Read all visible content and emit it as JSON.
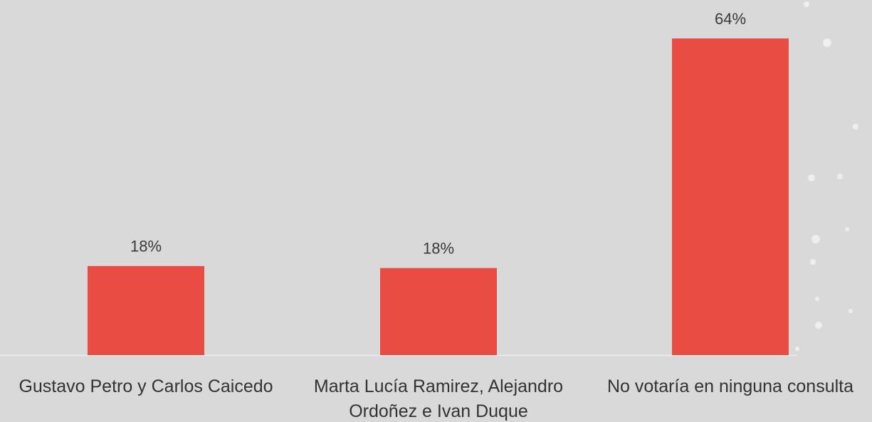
{
  "chart_data": {
    "type": "bar",
    "categories": [
      "Gustavo Petro y Carlos  Caicedo",
      "Marta Lucía Ramirez, Alejandro Ordoñez e Ivan Duque",
      "No votaría en ninguna consulta"
    ],
    "values": [
      18,
      17.6,
      64
    ],
    "value_labels": [
      "18%",
      "18%",
      "64%"
    ],
    "color": "#e84c43"
  }
}
